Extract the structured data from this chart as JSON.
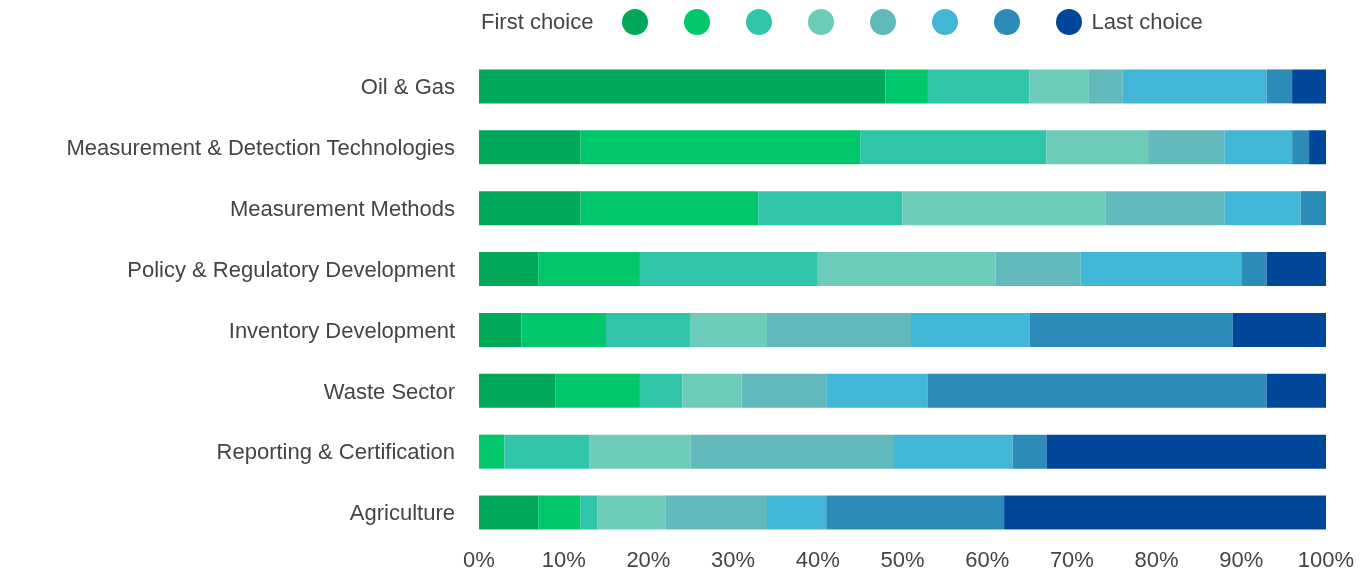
{
  "chart_data": {
    "type": "bar",
    "orientation": "horizontal",
    "stacked": true,
    "categories": [
      "Oil & Gas",
      "Measurement & Detection Technologies",
      "Measurement Methods",
      "Policy & Regulatory Development",
      "Inventory Development",
      "Waste Sector",
      "Reporting & Certification",
      "Agriculture"
    ],
    "series": [
      {
        "name": "First choice",
        "color": "#00a85a",
        "values": [
          48,
          12,
          12,
          7,
          5,
          9,
          0,
          7
        ]
      },
      {
        "color": "#00c66c",
        "values": [
          5,
          33,
          21,
          12,
          10,
          10,
          3,
          5
        ]
      },
      {
        "color": "#30c5a8",
        "values": [
          12,
          22,
          17,
          21,
          10,
          5,
          10,
          2
        ]
      },
      {
        "color": "#6dcbb9",
        "values": [
          7,
          12,
          24,
          21,
          9,
          7,
          12,
          8
        ]
      },
      {
        "color": "#62b9bb",
        "values": [
          4,
          9,
          14,
          10,
          17,
          10,
          24,
          12
        ]
      },
      {
        "color": "#41b6d6",
        "values": [
          17,
          8,
          9,
          19,
          14,
          12,
          14,
          7
        ]
      },
      {
        "color": "#2c8bb9",
        "values": [
          3,
          2,
          3,
          3,
          24,
          40,
          4,
          21
        ]
      },
      {
        "name": "Last choice",
        "color": "#00479b",
        "values": [
          4,
          2,
          0,
          7,
          11,
          7,
          33,
          38
        ]
      }
    ],
    "xlim": [
      0,
      100
    ],
    "xticks": [
      {
        "value": 0,
        "label": "0%"
      },
      {
        "value": 10,
        "label": "10%"
      },
      {
        "value": 20,
        "label": "20%"
      },
      {
        "value": 30,
        "label": "30%"
      },
      {
        "value": 40,
        "label": "40%"
      },
      {
        "value": 50,
        "label": "50%"
      },
      {
        "value": 60,
        "label": "60%"
      },
      {
        "value": 70,
        "label": "70%"
      },
      {
        "value": 80,
        "label": "80%"
      },
      {
        "value": 90,
        "label": "90%"
      },
      {
        "value": 100,
        "label": "100%"
      }
    ],
    "grid": false,
    "legend": "top"
  }
}
